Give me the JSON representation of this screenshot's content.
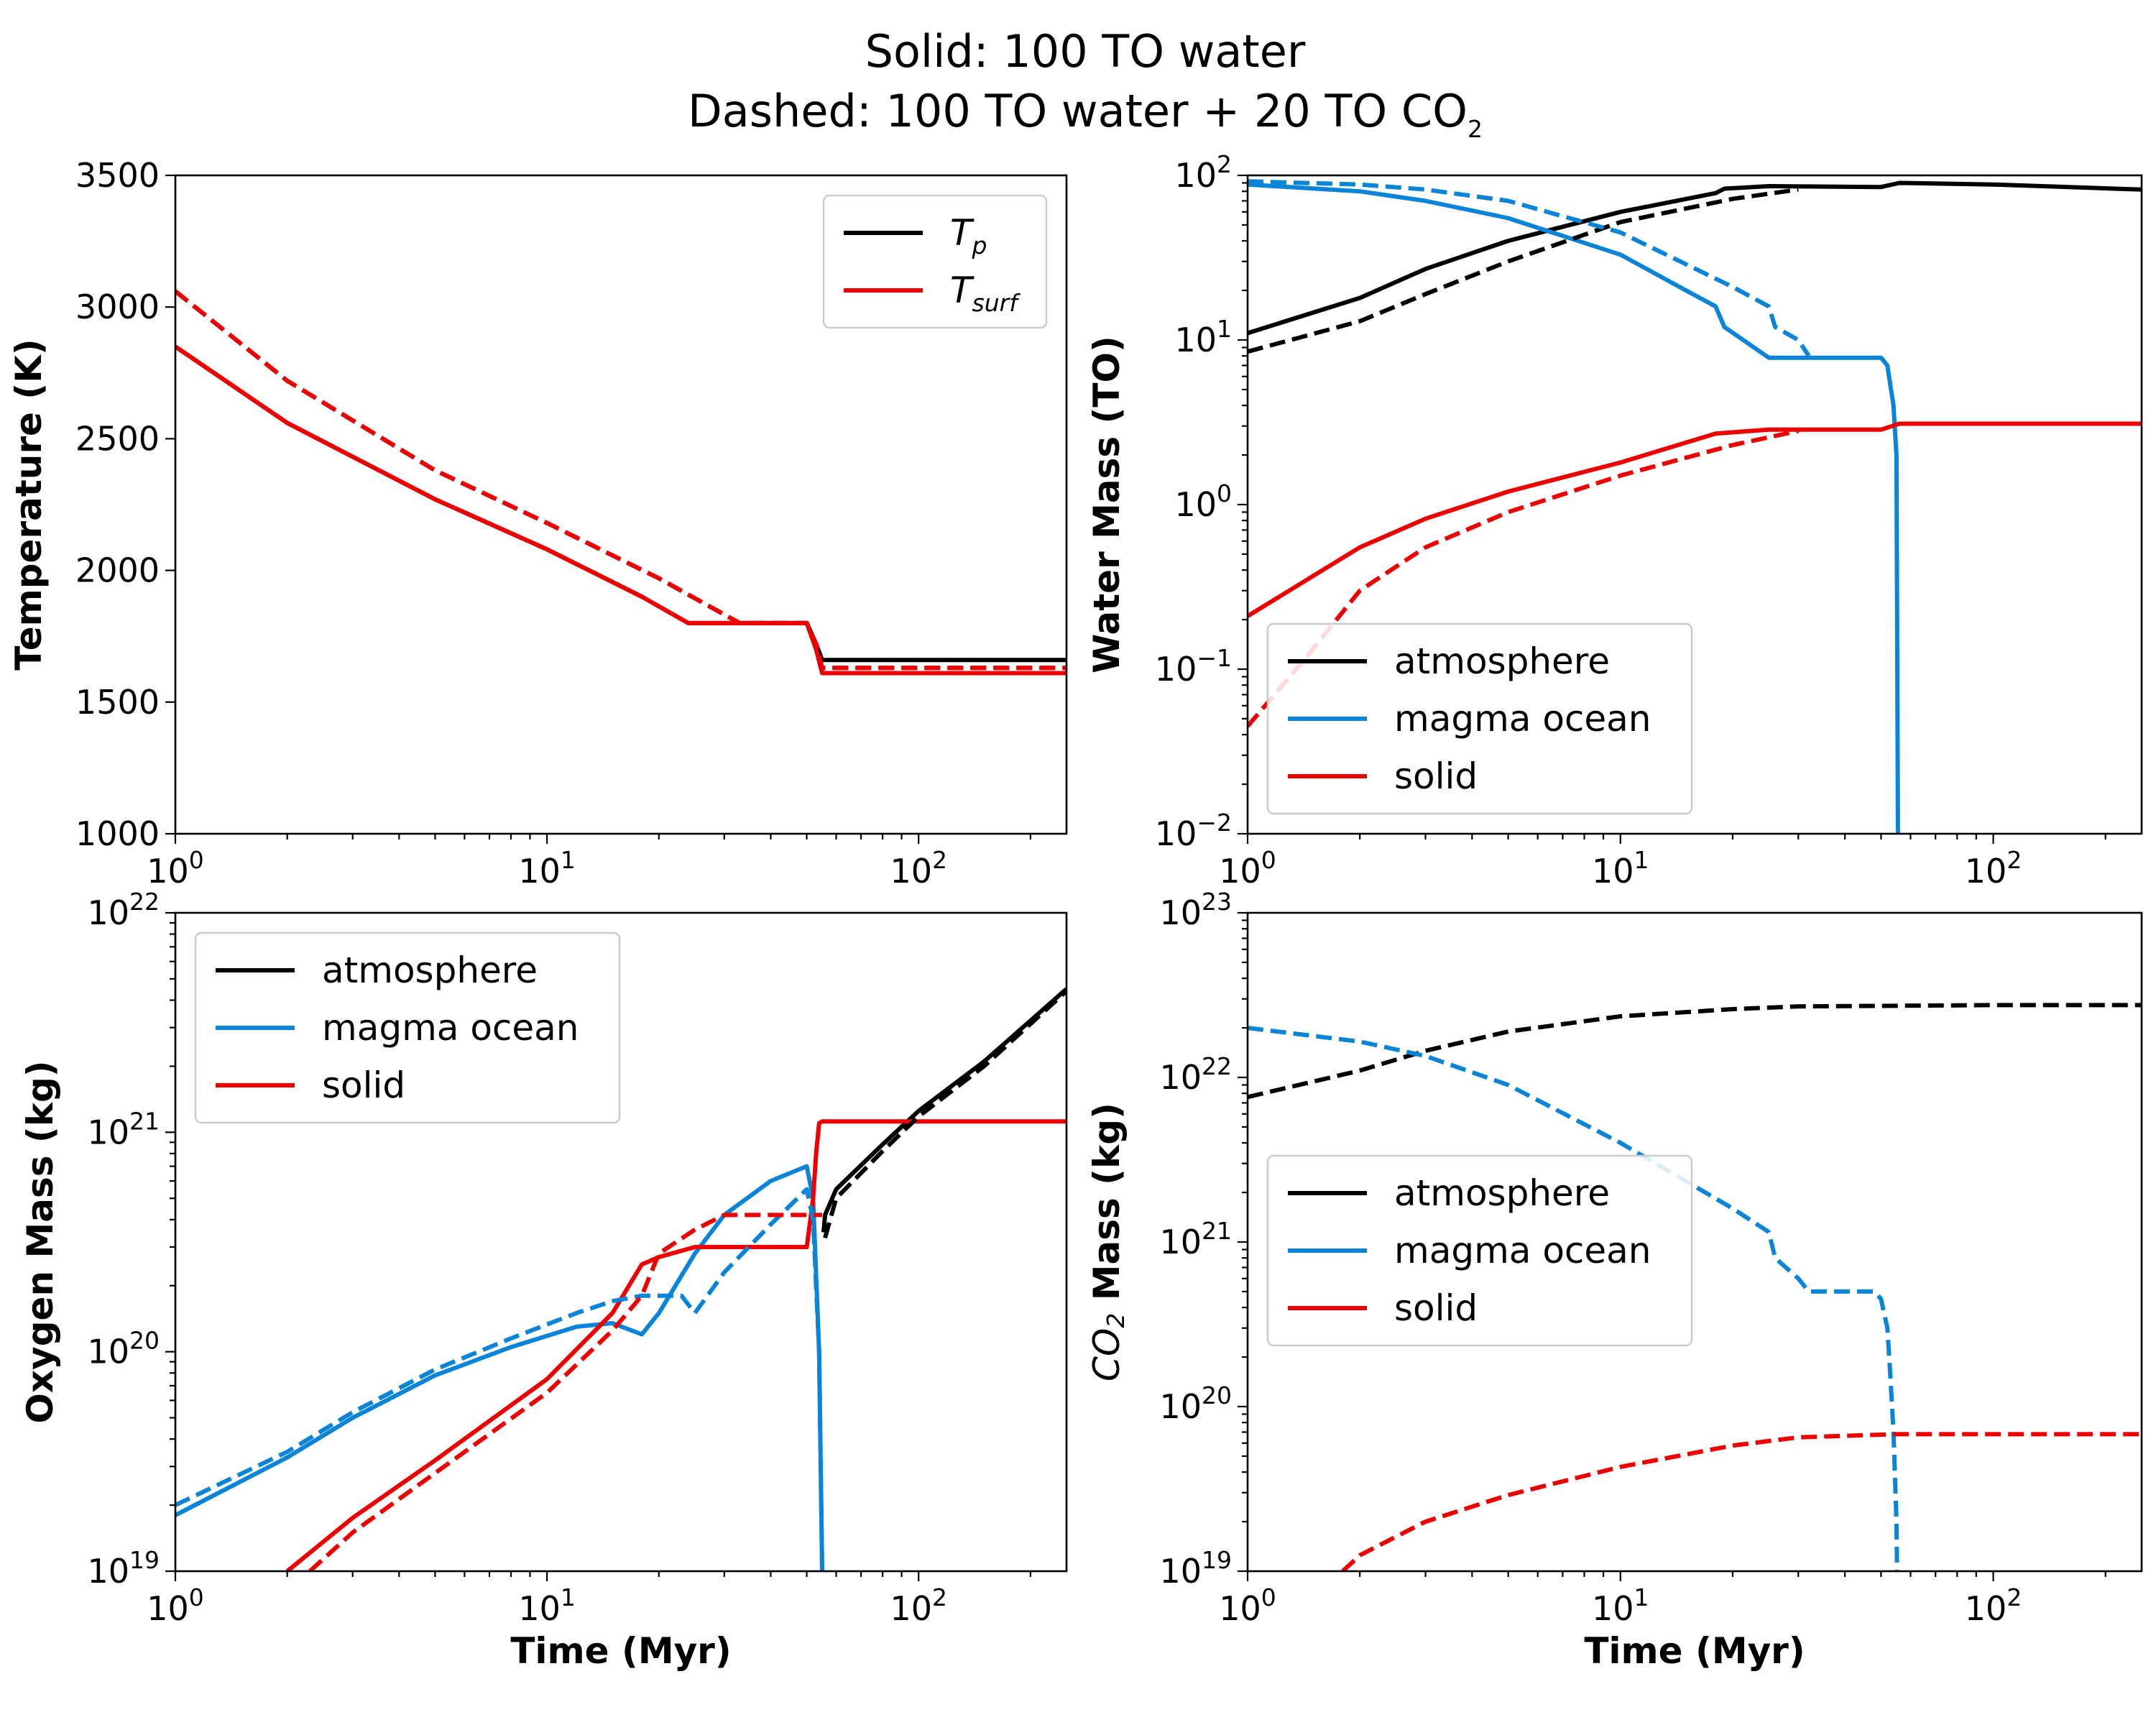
{
  "title_line1": "Solid: 100 TO water",
  "title_line2_prefix": "Dashed: 100 TO water + 20 TO CO",
  "title_line2_sub": "2",
  "colors": {
    "atmosphere": "#000000",
    "magma_ocean": "#0a84d8",
    "solid": "#ee0000"
  },
  "chart_data": [
    {
      "type": "line",
      "panel": "top-left",
      "ylabel": "Temperature (K)",
      "xlabel": "",
      "xscale": "log",
      "yscale": "linear",
      "xlim": [
        1,
        250
      ],
      "ylim": [
        1000,
        3500
      ],
      "xticks": [
        1,
        10,
        100
      ],
      "yticks": [
        1000,
        1500,
        2000,
        2500,
        3000,
        3500
      ],
      "legend": {
        "position": "upper right",
        "entries": [
          {
            "label": "T",
            "sub": "p",
            "color": "#000000"
          },
          {
            "label": "T",
            "sub": "surf",
            "color": "#ee0000"
          }
        ]
      },
      "series": [
        {
          "name": "T_p",
          "color": "#000000",
          "dashed": false,
          "x": [
            1,
            2,
            5,
            10,
            18,
            24,
            30,
            40,
            50,
            53,
            55,
            60,
            100,
            250
          ],
          "y": [
            2850,
            2560,
            2270,
            2080,
            1900,
            1800,
            1800,
            1800,
            1800,
            1720,
            1660,
            1660,
            1660,
            1660
          ]
        },
        {
          "name": "T_surf",
          "color": "#ee0000",
          "dashed": false,
          "x": [
            1,
            2,
            5,
            10,
            18,
            24,
            30,
            40,
            50,
            53,
            55,
            60,
            100,
            250
          ],
          "y": [
            2850,
            2560,
            2270,
            2080,
            1900,
            1800,
            1800,
            1800,
            1800,
            1700,
            1610,
            1610,
            1610,
            1610
          ]
        },
        {
          "name": "T_p (CO2)",
          "color": "#000000",
          "dashed": true,
          "x": [
            1,
            2,
            5,
            10,
            20,
            33,
            40,
            50,
            53,
            55,
            60,
            100,
            250
          ],
          "y": [
            3060,
            2720,
            2380,
            2180,
            1970,
            1800,
            1800,
            1800,
            1720,
            1630,
            1630,
            1630,
            1630
          ]
        },
        {
          "name": "T_surf (CO2)",
          "color": "#ee0000",
          "dashed": true,
          "x": [
            1,
            2,
            5,
            10,
            20,
            33,
            40,
            50,
            53,
            55,
            60,
            100,
            250
          ],
          "y": [
            3060,
            2720,
            2380,
            2180,
            1970,
            1800,
            1800,
            1800,
            1720,
            1630,
            1630,
            1630,
            1630
          ]
        }
      ]
    },
    {
      "type": "line",
      "panel": "top-right",
      "ylabel": "Water Mass (TO)",
      "xlabel": "",
      "xscale": "log",
      "yscale": "log",
      "xlim": [
        1,
        250
      ],
      "ylim": [
        0.01,
        100
      ],
      "xticks": [
        1,
        10,
        100
      ],
      "yticks": [
        0.01,
        0.1,
        1,
        10,
        100
      ],
      "legend": {
        "position": "lower left",
        "entries": [
          {
            "label": "atmosphere",
            "color": "#000000"
          },
          {
            "label": "magma ocean",
            "color": "#0a84d8"
          },
          {
            "label": "solid",
            "color": "#ee0000"
          }
        ]
      },
      "series": [
        {
          "name": "atmosphere",
          "color": "#000000",
          "dashed": false,
          "x": [
            1,
            2,
            3,
            5,
            10,
            18,
            19,
            25,
            50,
            56,
            100,
            250
          ],
          "y": [
            11,
            18,
            27,
            40,
            60,
            78,
            83,
            86,
            85,
            90,
            88,
            82
          ]
        },
        {
          "name": "magma ocean",
          "color": "#0a84d8",
          "dashed": false,
          "x": [
            1,
            2,
            3,
            5,
            10,
            15,
            18,
            19,
            25,
            40,
            50,
            52,
            54,
            55,
            55.5
          ],
          "y": [
            88,
            80,
            70,
            55,
            33,
            20,
            16,
            12,
            7.8,
            7.8,
            7.8,
            7,
            4,
            2,
            0.01
          ]
        },
        {
          "name": "solid",
          "color": "#ee0000",
          "dashed": false,
          "x": [
            1,
            2,
            3,
            5,
            10,
            18,
            25,
            50,
            56,
            100,
            250
          ],
          "y": [
            0.21,
            0.55,
            0.82,
            1.2,
            1.8,
            2.7,
            2.85,
            2.85,
            3.1,
            3.1,
            3.1
          ]
        },
        {
          "name": "atmosphere (CO2)",
          "color": "#000000",
          "dashed": true,
          "x": [
            1,
            2,
            3,
            5,
            10,
            20,
            30
          ],
          "y": [
            8.5,
            13,
            19,
            30,
            52,
            72,
            82
          ]
        },
        {
          "name": "magma ocean (CO2)",
          "color": "#0a84d8",
          "dashed": true,
          "x": [
            1,
            2,
            3,
            5,
            10,
            20,
            25,
            26,
            30,
            32
          ],
          "y": [
            92,
            88,
            82,
            70,
            45,
            21,
            16,
            12,
            10,
            8
          ]
        },
        {
          "name": "solid (CO2)",
          "color": "#ee0000",
          "dashed": true,
          "x": [
            1,
            1.4,
            2,
            3,
            5,
            10,
            20,
            30
          ],
          "y": [
            0.045,
            0.11,
            0.3,
            0.55,
            0.9,
            1.5,
            2.3,
            2.8
          ]
        }
      ]
    },
    {
      "type": "line",
      "panel": "bottom-left",
      "ylabel": "Oxygen Mass (kg)",
      "xlabel": "Time (Myr)",
      "xscale": "log",
      "yscale": "log",
      "xlim": [
        1,
        250
      ],
      "ylim": [
        1e+19,
        1e+22
      ],
      "xticks": [
        1,
        10,
        100
      ],
      "yticks": [
        1e+19,
        1e+20,
        1e+21,
        1e+22
      ],
      "legend": {
        "position": "upper left",
        "entries": [
          {
            "label": "atmosphere",
            "color": "#000000"
          },
          {
            "label": "magma ocean",
            "color": "#0a84d8"
          },
          {
            "label": "solid",
            "color": "#ee0000"
          }
        ]
      },
      "series": [
        {
          "name": "atmosphere",
          "color": "#000000",
          "dashed": false,
          "x": [
            55.5,
            56,
            60,
            80,
            100,
            150,
            250
          ],
          "y": [
            3.5e+20,
            4.2e+20,
            5.5e+20,
            8.8e+20,
            1.25e+21,
            2.1e+21,
            4.5e+21
          ]
        },
        {
          "name": "magma ocean",
          "color": "#0a84d8",
          "dashed": false,
          "x": [
            1,
            2,
            3,
            5,
            8,
            12,
            15,
            18,
            20,
            25,
            30,
            40,
            50,
            52,
            54,
            55
          ],
          "y": [
            1.8e+19,
            3.3e+19,
            5e+19,
            7.8e+19,
            1.05e+20,
            1.3e+20,
            1.35e+20,
            1.2e+20,
            1.5e+20,
            2.8e+20,
            4.2e+20,
            6e+20,
            7e+20,
            5e+20,
            1e+20,
            1e+19
          ]
        },
        {
          "name": "solid",
          "color": "#ee0000",
          "dashed": false,
          "x": [
            2,
            3,
            5,
            10,
            15,
            18,
            20,
            25,
            30,
            40,
            50,
            52,
            53,
            54,
            55,
            60,
            100,
            250
          ],
          "y": [
            1e+19,
            1.75e+19,
            3.2e+19,
            7.5e+19,
            1.5e+20,
            2.5e+20,
            2.7e+20,
            3e+20,
            3e+20,
            3e+20,
            3e+20,
            5e+20,
            8e+20,
            1.1e+21,
            1.12e+21,
            1.12e+21,
            1.12e+21,
            1.12e+21
          ]
        },
        {
          "name": "atmosphere (CO2)",
          "color": "#000000",
          "dashed": true,
          "x": [
            56,
            60,
            80,
            100,
            150,
            250
          ],
          "y": [
            3.3e+20,
            5e+20,
            8.2e+20,
            1.18e+21,
            2e+21,
            4.4e+21
          ]
        },
        {
          "name": "magma ocean (CO2)",
          "color": "#0a84d8",
          "dashed": true,
          "x": [
            1,
            2,
            3,
            5,
            8,
            12,
            15,
            18,
            20,
            23,
            25,
            30,
            40,
            50,
            52,
            54,
            55
          ],
          "y": [
            2e+19,
            3.5e+19,
            5.3e+19,
            8.3e+19,
            1.15e+20,
            1.5e+20,
            1.7e+20,
            1.8e+20,
            1.8e+20,
            1.8e+20,
            1.5e+20,
            2.3e+20,
            3.8e+20,
            5.5e+20,
            4e+20,
            1e+20,
            1e+19
          ]
        },
        {
          "name": "solid (CO2)",
          "color": "#ee0000",
          "dashed": true,
          "x": [
            2.3,
            3,
            5,
            10,
            15,
            18,
            20,
            25,
            30,
            40,
            50,
            52,
            54,
            55
          ],
          "y": [
            1e+19,
            1.5e+19,
            2.8e+19,
            6.5e+19,
            1.25e+20,
            1.8e+20,
            2.8e+20,
            3.6e+20,
            4.2e+20,
            4.2e+20,
            4.2e+20,
            4.2e+20,
            4.2e+20,
            4.2e+20
          ]
        }
      ]
    },
    {
      "type": "line",
      "panel": "bottom-right",
      "ylabel": "CO",
      "ylabel_sub": "2",
      "ylabel_suffix": " Mass (kg)",
      "xlabel": "Time (Myr)",
      "xscale": "log",
      "yscale": "log",
      "xlim": [
        1,
        250
      ],
      "ylim": [
        1e+19,
        1e+23
      ],
      "xticks": [
        1,
        10,
        100
      ],
      "yticks": [
        1e+19,
        1e+20,
        1e+21,
        1e+22,
        1e+23
      ],
      "legend": {
        "position": "center left",
        "entries": [
          {
            "label": "atmosphere",
            "color": "#000000"
          },
          {
            "label": "magma ocean",
            "color": "#0a84d8"
          },
          {
            "label": "solid",
            "color": "#ee0000"
          }
        ]
      },
      "series": [
        {
          "name": "atmosphere (CO2)",
          "color": "#000000",
          "dashed": true,
          "x": [
            1,
            2,
            3,
            5,
            10,
            20,
            30,
            50,
            100,
            250
          ],
          "y": [
            7.6e+21,
            1.1e+22,
            1.45e+22,
            1.9e+22,
            2.35e+22,
            2.6e+22,
            2.7e+22,
            2.72e+22,
            2.75e+22,
            2.75e+22
          ]
        },
        {
          "name": "magma ocean (CO2)",
          "color": "#0a84d8",
          "dashed": true,
          "x": [
            1,
            2,
            3,
            5,
            10,
            20,
            25,
            26,
            30,
            32,
            40,
            48,
            50,
            52,
            53,
            54,
            55,
            55.2
          ],
          "y": [
            2e+22,
            1.65e+22,
            1.35e+22,
            9e+21,
            4e+21,
            1.6e+21,
            1.15e+21,
            8e+20,
            6e+20,
            5e+20,
            5e+20,
            5e+20,
            4.5e+20,
            3e+20,
            1.5e+20,
            7e+19,
            2e+19,
            1e+19
          ]
        },
        {
          "name": "solid (CO2)",
          "color": "#ee0000",
          "dashed": true,
          "x": [
            1.8,
            2,
            3,
            5,
            10,
            20,
            30,
            55,
            100,
            250
          ],
          "y": [
            1e+19,
            1.25e+19,
            2e+19,
            2.9e+19,
            4.3e+19,
            5.8e+19,
            6.5e+19,
            6.8e+19,
            6.8e+19,
            6.8e+19
          ]
        }
      ]
    }
  ]
}
